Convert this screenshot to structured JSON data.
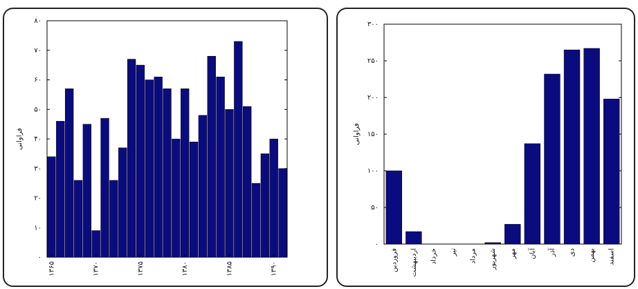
{
  "chart_data": [
    {
      "type": "bar",
      "ylabel": "فراوانی",
      "color": "#0b0b80",
      "x": [
        1365,
        1366,
        1367,
        1368,
        1369,
        1370,
        1371,
        1372,
        1373,
        1374,
        1375,
        1376,
        1377,
        1378,
        1379,
        1380,
        1381,
        1382,
        1383,
        1384,
        1385,
        1386,
        1387,
        1388,
        1389,
        1390,
        1391
      ],
      "values": [
        34,
        46,
        57,
        26,
        45,
        9,
        47,
        26,
        37,
        67,
        65,
        60,
        61,
        57,
        40,
        57,
        39,
        48,
        68,
        61,
        50,
        73,
        51,
        25,
        35,
        40,
        30
      ],
      "xlim": [
        1364.5,
        1391.5
      ],
      "xticks": [
        {
          "value": 1365,
          "label": "۱۳۶۵"
        },
        {
          "value": 1370,
          "label": "۱۳۷۰"
        },
        {
          "value": 1375,
          "label": "۱۳۷۵"
        },
        {
          "value": 1380,
          "label": "۱۳۸۰"
        },
        {
          "value": 1385,
          "label": "۱۳۸۵"
        },
        {
          "value": 1390,
          "label": "۱۳۹۰"
        }
      ],
      "ylim": [
        0,
        80
      ],
      "yticks": [
        {
          "value": 0,
          "label": "۰"
        },
        {
          "value": 10,
          "label": "۱۰"
        },
        {
          "value": 20,
          "label": "۲۰"
        },
        {
          "value": 30,
          "label": "۳۰"
        },
        {
          "value": 40,
          "label": "۴۰"
        },
        {
          "value": 50,
          "label": "۵۰"
        },
        {
          "value": 60,
          "label": "۶۰"
        },
        {
          "value": 70,
          "label": "۷۰"
        },
        {
          "value": 80,
          "label": "۸۰"
        }
      ]
    },
    {
      "type": "bar",
      "ylabel": "فراوانی",
      "color": "#0b0b80",
      "categories": [
        "فروردین",
        "اردیبهشت",
        "خرداد",
        "تیر",
        "مرداد",
        "شهریور",
        "مهر",
        "آبان",
        "آذر",
        "دی",
        "بهمن",
        "اسفند"
      ],
      "values": [
        100,
        17,
        0,
        0,
        0,
        2,
        27,
        137,
        232,
        265,
        267,
        198
      ],
      "ylim": [
        0,
        300
      ],
      "yticks": [
        {
          "value": 0,
          "label": "۰"
        },
        {
          "value": 50,
          "label": "۵۰"
        },
        {
          "value": 100,
          "label": "۱۰۰"
        },
        {
          "value": 150,
          "label": "۱۵۰"
        },
        {
          "value": 200,
          "label": "۲۰۰"
        },
        {
          "value": 250,
          "label": "۲۵۰"
        },
        {
          "value": 300,
          "label": "۳۰۰"
        }
      ]
    }
  ]
}
